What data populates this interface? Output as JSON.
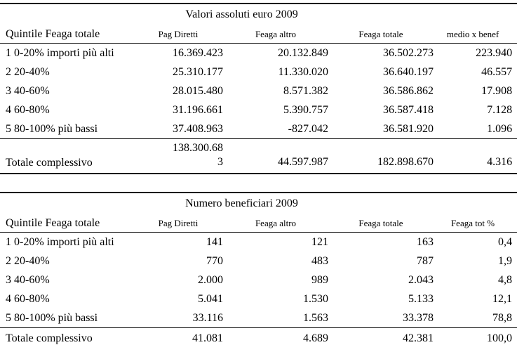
{
  "page": {
    "background_color": "#ffffff",
    "text_color": "#000000"
  },
  "tables": [
    {
      "title": "Valori assoluti euro 2009",
      "row_header": "Quintile Feaga totale",
      "columns": [
        "Pag Diretti",
        "Feaga altro",
        "Feaga totale",
        "medio x benef"
      ],
      "rows": [
        {
          "label": "1 0-20% importi più alti",
          "values": [
            "16.369.423",
            "20.132.849",
            "36.502.273",
            "223.940"
          ]
        },
        {
          "label": "2 20-40%",
          "values": [
            "25.310.177",
            "11.330.020",
            "36.640.197",
            "46.557"
          ]
        },
        {
          "label": "3 40-60%",
          "values": [
            "28.015.480",
            "8.571.382",
            "36.586.862",
            "17.908"
          ]
        },
        {
          "label": "4 60-80%",
          "values": [
            "31.196.661",
            "5.390.757",
            "36.587.418",
            "7.128"
          ]
        },
        {
          "label": "5 80-100% più bassi",
          "values": [
            "37.408.963",
            "-827.042",
            "36.581.920",
            "1.096"
          ]
        }
      ],
      "total": {
        "label": "Totale complessivo",
        "values": [
          "138.300.68\n3",
          "44.597.987",
          "182.898.670",
          "4.316"
        ]
      }
    },
    {
      "title": "Numero beneficiari 2009",
      "row_header": "Quintile Feaga totale",
      "columns": [
        "Pag Diretti",
        "Feaga altro",
        "Feaga totale",
        "Feaga tot %"
      ],
      "rows": [
        {
          "label": "1 0-20% importi più alti",
          "values": [
            "141",
            "121",
            "163",
            "0,4"
          ]
        },
        {
          "label": "2 20-40%",
          "values": [
            "770",
            "483",
            "787",
            "1,9"
          ]
        },
        {
          "label": "3 40-60%",
          "values": [
            "2.000",
            "989",
            "2.043",
            "4,8"
          ]
        },
        {
          "label": "4 60-80%",
          "values": [
            "5.041",
            "1.530",
            "5.133",
            "12,1"
          ]
        },
        {
          "label": "5 80-100% più bassi",
          "values": [
            "33.116",
            "1.563",
            "33.378",
            "78,8"
          ]
        }
      ],
      "total": {
        "label": "Totale complessivo",
        "values": [
          "41.081",
          "4.689",
          "42.381",
          "100,0"
        ]
      }
    }
  ]
}
